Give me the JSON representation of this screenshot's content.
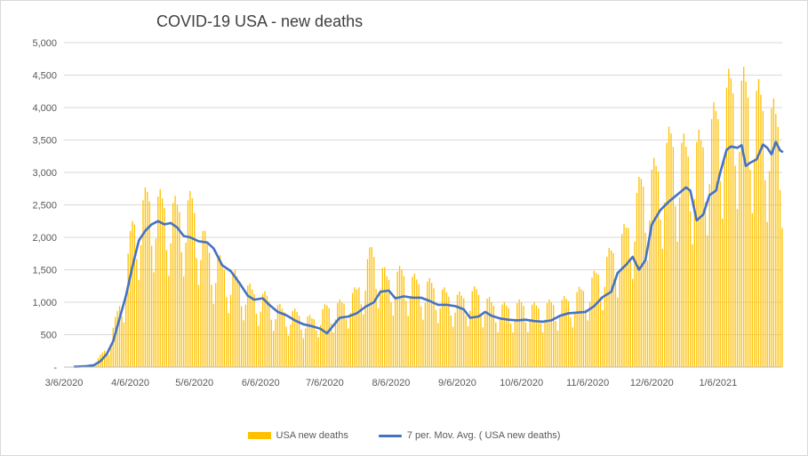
{
  "chart_data": {
    "type": "bar",
    "title": "COVID-19 USA - new deaths",
    "xlabel": "",
    "ylabel": "",
    "ylim": [
      0,
      5000
    ],
    "y_ticks": [
      "-",
      "500",
      "1,000",
      "1,500",
      "2,000",
      "2,500",
      "3,000",
      "3,500",
      "4,000",
      "4,500",
      "5,000"
    ],
    "x_ticks": [
      "3/6/2020",
      "4/6/2020",
      "5/6/2020",
      "6/6/2020",
      "7/6/2020",
      "8/6/2020",
      "9/6/2020",
      "10/6/2020",
      "11/6/2020",
      "12/6/2020",
      "1/6/2021"
    ],
    "x_range": [
      "2020-03-06",
      "2021-02-05"
    ],
    "grid": "horizontal",
    "legend_position": "bottom",
    "colors": {
      "bars": "#ffc000",
      "moving_average": "#4472c4"
    },
    "series": [
      {
        "name": "USA new deaths",
        "type": "bar",
        "note_unit": "deaths per day",
        "daily_sample": [
          {
            "x": "2020-03-06",
            "y": 2
          },
          {
            "x": "2020-03-13",
            "y": 10
          },
          {
            "x": "2020-03-20",
            "y": 60
          },
          {
            "x": "2020-03-27",
            "y": 350
          },
          {
            "x": "2020-04-03",
            "y": 1250
          },
          {
            "x": "2020-04-07",
            "y": 2250
          },
          {
            "x": "2020-04-14",
            "y": 2700
          },
          {
            "x": "2020-04-21",
            "y": 2600
          },
          {
            "x": "2020-04-28",
            "y": 2500
          },
          {
            "x": "2020-05-05",
            "y": 2600
          },
          {
            "x": "2020-05-12",
            "y": 1900
          },
          {
            "x": "2020-05-19",
            "y": 1600
          },
          {
            "x": "2020-05-26",
            "y": 1400
          },
          {
            "x": "2020-06-02",
            "y": 1200
          },
          {
            "x": "2020-06-09",
            "y": 1100
          },
          {
            "x": "2020-06-16",
            "y": 900
          },
          {
            "x": "2020-06-23",
            "y": 850
          },
          {
            "x": "2020-06-30",
            "y": 750
          },
          {
            "x": "2020-07-07",
            "y": 950
          },
          {
            "x": "2020-07-14",
            "y": 1000
          },
          {
            "x": "2020-07-21",
            "y": 1200
          },
          {
            "x": "2020-07-28",
            "y": 1850
          },
          {
            "x": "2020-08-04",
            "y": 1400
          },
          {
            "x": "2020-08-11",
            "y": 1500
          },
          {
            "x": "2020-08-18",
            "y": 1350
          },
          {
            "x": "2020-08-25",
            "y": 1300
          },
          {
            "x": "2020-09-01",
            "y": 1150
          },
          {
            "x": "2020-09-08",
            "y": 1100
          },
          {
            "x": "2020-09-15",
            "y": 1200
          },
          {
            "x": "2020-09-22",
            "y": 1000
          },
          {
            "x": "2020-09-29",
            "y": 950
          },
          {
            "x": "2020-10-06",
            "y": 1000
          },
          {
            "x": "2020-10-13",
            "y": 950
          },
          {
            "x": "2020-10-20",
            "y": 1000
          },
          {
            "x": "2020-10-27",
            "y": 1050
          },
          {
            "x": "2020-11-03",
            "y": 1200
          },
          {
            "x": "2020-11-10",
            "y": 1450
          },
          {
            "x": "2020-11-17",
            "y": 1800
          },
          {
            "x": "2020-11-24",
            "y": 2150
          },
          {
            "x": "2020-12-01",
            "y": 2900
          },
          {
            "x": "2020-12-08",
            "y": 3100
          },
          {
            "x": "2020-12-15",
            "y": 3600
          },
          {
            "x": "2020-12-22",
            "y": 3400
          },
          {
            "x": "2020-12-29",
            "y": 3500
          },
          {
            "x": "2021-01-05",
            "y": 3950
          },
          {
            "x": "2021-01-12",
            "y": 4450
          },
          {
            "x": "2021-01-19",
            "y": 4400
          },
          {
            "x": "2021-01-26",
            "y": 4200
          },
          {
            "x": "2021-02-02",
            "y": 3900
          }
        ]
      },
      {
        "name": "7 per. Mov. Avg. ( USA new deaths)",
        "type": "line",
        "points": [
          {
            "x": "2020-03-11",
            "y": 5
          },
          {
            "x": "2020-03-17",
            "y": 15
          },
          {
            "x": "2020-03-20",
            "y": 30
          },
          {
            "x": "2020-03-23",
            "y": 90
          },
          {
            "x": "2020-03-26",
            "y": 200
          },
          {
            "x": "2020-03-29",
            "y": 400
          },
          {
            "x": "2020-04-01",
            "y": 750
          },
          {
            "x": "2020-04-04",
            "y": 1100
          },
          {
            "x": "2020-04-07",
            "y": 1550
          },
          {
            "x": "2020-04-10",
            "y": 1950
          },
          {
            "x": "2020-04-13",
            "y": 2100
          },
          {
            "x": "2020-04-16",
            "y": 2200
          },
          {
            "x": "2020-04-19",
            "y": 2250
          },
          {
            "x": "2020-04-22",
            "y": 2200
          },
          {
            "x": "2020-04-25",
            "y": 2220
          },
          {
            "x": "2020-04-28",
            "y": 2150
          },
          {
            "x": "2020-05-01",
            "y": 2020
          },
          {
            "x": "2020-05-04",
            "y": 2000
          },
          {
            "x": "2020-05-08",
            "y": 1940
          },
          {
            "x": "2020-05-12",
            "y": 1920
          },
          {
            "x": "2020-05-15",
            "y": 1830
          },
          {
            "x": "2020-05-19",
            "y": 1570
          },
          {
            "x": "2020-05-23",
            "y": 1480
          },
          {
            "x": "2020-05-27",
            "y": 1300
          },
          {
            "x": "2020-05-31",
            "y": 1100
          },
          {
            "x": "2020-06-03",
            "y": 1040
          },
          {
            "x": "2020-06-07",
            "y": 1060
          },
          {
            "x": "2020-06-10",
            "y": 960
          },
          {
            "x": "2020-06-14",
            "y": 850
          },
          {
            "x": "2020-06-18",
            "y": 800
          },
          {
            "x": "2020-06-22",
            "y": 720
          },
          {
            "x": "2020-06-26",
            "y": 660
          },
          {
            "x": "2020-06-30",
            "y": 630
          },
          {
            "x": "2020-07-04",
            "y": 590
          },
          {
            "x": "2020-07-07",
            "y": 520
          },
          {
            "x": "2020-07-10",
            "y": 640
          },
          {
            "x": "2020-07-13",
            "y": 760
          },
          {
            "x": "2020-07-17",
            "y": 780
          },
          {
            "x": "2020-07-21",
            "y": 830
          },
          {
            "x": "2020-07-25",
            "y": 930
          },
          {
            "x": "2020-07-29",
            "y": 1000
          },
          {
            "x": "2020-08-01",
            "y": 1160
          },
          {
            "x": "2020-08-05",
            "y": 1180
          },
          {
            "x": "2020-08-08",
            "y": 1060
          },
          {
            "x": "2020-08-12",
            "y": 1090
          },
          {
            "x": "2020-08-16",
            "y": 1070
          },
          {
            "x": "2020-08-20",
            "y": 1070
          },
          {
            "x": "2020-08-24",
            "y": 1020
          },
          {
            "x": "2020-08-28",
            "y": 960
          },
          {
            "x": "2020-09-01",
            "y": 960
          },
          {
            "x": "2020-09-05",
            "y": 940
          },
          {
            "x": "2020-09-09",
            "y": 890
          },
          {
            "x": "2020-09-12",
            "y": 760
          },
          {
            "x": "2020-09-16",
            "y": 780
          },
          {
            "x": "2020-09-19",
            "y": 850
          },
          {
            "x": "2020-09-22",
            "y": 790
          },
          {
            "x": "2020-09-26",
            "y": 750
          },
          {
            "x": "2020-09-30",
            "y": 730
          },
          {
            "x": "2020-10-04",
            "y": 720
          },
          {
            "x": "2020-10-08",
            "y": 730
          },
          {
            "x": "2020-10-12",
            "y": 710
          },
          {
            "x": "2020-10-16",
            "y": 700
          },
          {
            "x": "2020-10-20",
            "y": 720
          },
          {
            "x": "2020-10-24",
            "y": 790
          },
          {
            "x": "2020-10-28",
            "y": 830
          },
          {
            "x": "2020-11-01",
            "y": 840
          },
          {
            "x": "2020-11-05",
            "y": 850
          },
          {
            "x": "2020-11-09",
            "y": 940
          },
          {
            "x": "2020-11-13",
            "y": 1080
          },
          {
            "x": "2020-11-17",
            "y": 1160
          },
          {
            "x": "2020-11-20",
            "y": 1450
          },
          {
            "x": "2020-11-24",
            "y": 1580
          },
          {
            "x": "2020-11-27",
            "y": 1700
          },
          {
            "x": "2020-11-30",
            "y": 1500
          },
          {
            "x": "2020-12-03",
            "y": 1650
          },
          {
            "x": "2020-12-06",
            "y": 2200
          },
          {
            "x": "2020-12-10",
            "y": 2420
          },
          {
            "x": "2020-12-14",
            "y": 2550
          },
          {
            "x": "2020-12-18",
            "y": 2660
          },
          {
            "x": "2020-12-22",
            "y": 2770
          },
          {
            "x": "2020-12-24",
            "y": 2720
          },
          {
            "x": "2020-12-27",
            "y": 2260
          },
          {
            "x": "2020-12-30",
            "y": 2350
          },
          {
            "x": "2021-01-02",
            "y": 2650
          },
          {
            "x": "2021-01-05",
            "y": 2720
          },
          {
            "x": "2021-01-07",
            "y": 3000
          },
          {
            "x": "2021-01-10",
            "y": 3350
          },
          {
            "x": "2021-01-12",
            "y": 3400
          },
          {
            "x": "2021-01-15",
            "y": 3380
          },
          {
            "x": "2021-01-17",
            "y": 3420
          },
          {
            "x": "2021-01-19",
            "y": 3100
          },
          {
            "x": "2021-01-21",
            "y": 3150
          },
          {
            "x": "2021-01-24",
            "y": 3200
          },
          {
            "x": "2021-01-27",
            "y": 3430
          },
          {
            "x": "2021-01-29",
            "y": 3380
          },
          {
            "x": "2021-01-31",
            "y": 3280
          },
          {
            "x": "2021-02-02",
            "y": 3470
          },
          {
            "x": "2021-02-04",
            "y": 3340
          },
          {
            "x": "2021-02-05",
            "y": 3320
          }
        ]
      }
    ]
  }
}
